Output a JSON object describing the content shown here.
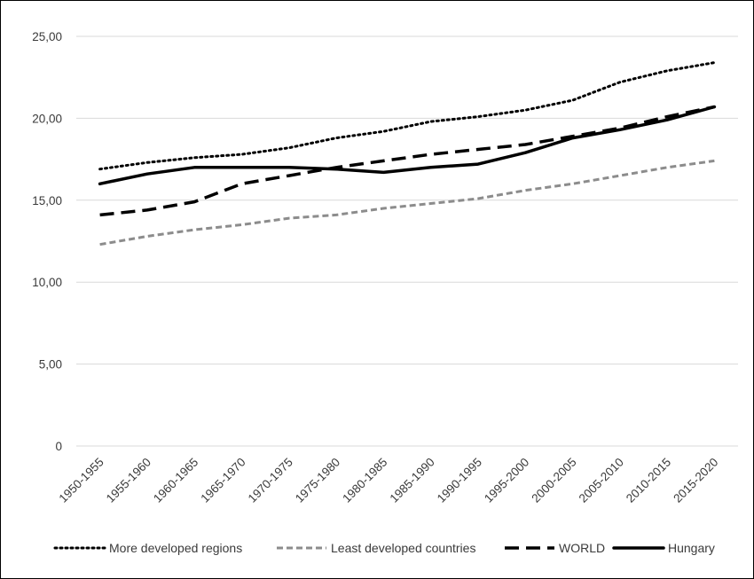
{
  "chart_data": {
    "type": "line",
    "title": "",
    "xlabel": "",
    "ylabel": "",
    "categories": [
      "1950-1955",
      "1955-1960",
      "1960-1965",
      "1965-1970",
      "1970-1975",
      "1975-1980",
      "1980-1985",
      "1985-1990",
      "1990-1995",
      "1995-2000",
      "2000-2005",
      "2005-2010",
      "2010-2015",
      "2015-2020"
    ],
    "y_ticks": [
      "0",
      "5,00",
      "10,00",
      "15,00",
      "20,00",
      "25,00"
    ],
    "ylim": [
      0,
      25
    ],
    "grid": true,
    "legend_position": "bottom",
    "series": [
      {
        "name": "More developed regions",
        "style": "dotted",
        "color": "#000000",
        "values": [
          16.9,
          17.3,
          17.6,
          17.8,
          18.2,
          18.8,
          19.2,
          19.8,
          20.1,
          20.5,
          21.1,
          22.2,
          22.9,
          23.4
        ]
      },
      {
        "name": "Least developed countries",
        "style": "dashed-short",
        "color": "#8c8c8c",
        "values": [
          12.3,
          12.8,
          13.2,
          13.5,
          13.9,
          14.1,
          14.5,
          14.8,
          15.1,
          15.6,
          16.0,
          16.5,
          17.0,
          17.4
        ]
      },
      {
        "name": "WORLD",
        "style": "dashed-long",
        "color": "#000000",
        "values": [
          14.1,
          14.4,
          14.9,
          16.0,
          16.5,
          17.0,
          17.4,
          17.8,
          18.1,
          18.4,
          18.9,
          19.4,
          20.1,
          20.7
        ]
      },
      {
        "name": "Hungary",
        "style": "solid",
        "color": "#000000",
        "values": [
          16.0,
          16.6,
          17.0,
          17.0,
          17.0,
          16.9,
          16.7,
          17.0,
          17.2,
          17.9,
          18.8,
          19.3,
          19.9,
          20.7
        ]
      }
    ]
  }
}
